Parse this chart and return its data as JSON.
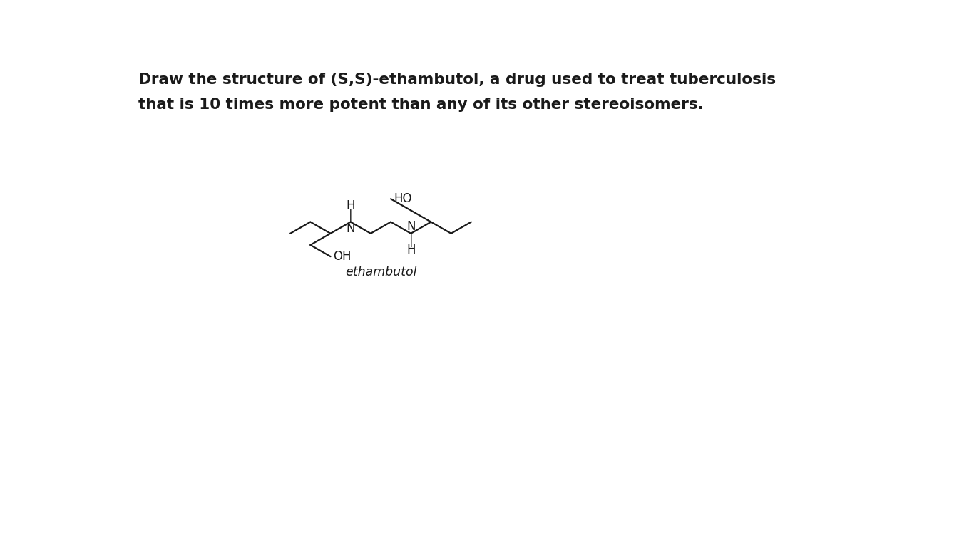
{
  "title_line1": "Draw the structure of (S,S)-ethambutol, a drug used to treat tuberculosis",
  "title_line2": "that is 10 times more potent than any of its other stereoisomers.",
  "title_fontsize": 15.5,
  "label_fontsize": 12,
  "molecule_label": "ethambutol",
  "background_color": "#ffffff",
  "line_color": "#1a1a1a",
  "text_color": "#1a1a1a",
  "lw": 1.6
}
